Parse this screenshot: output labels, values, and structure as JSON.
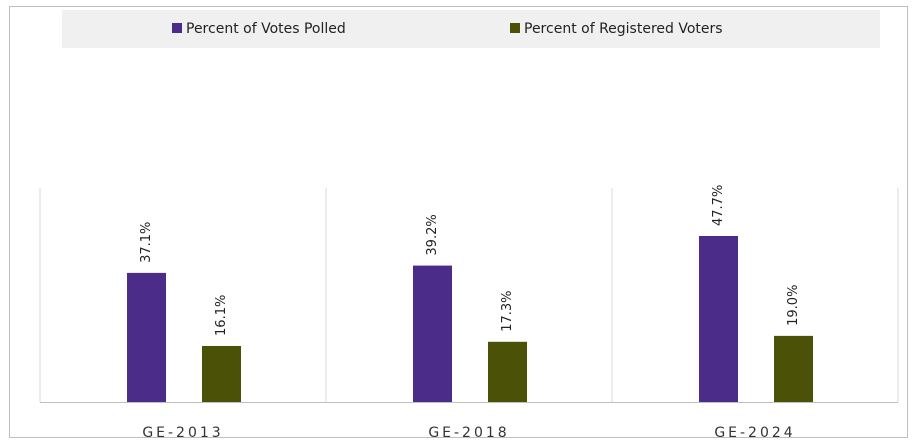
{
  "chart_data": {
    "type": "bar",
    "categories": [
      "GE-2013",
      "GE-2018",
      "GE-2024"
    ],
    "series": [
      {
        "name": "Percent of Votes Polled",
        "color": "#4b2c88",
        "values": [
          37.1,
          39.2,
          47.7
        ],
        "value_labels": [
          "37.1%",
          "39.2%",
          "47.7%"
        ]
      },
      {
        "name": "Percent of Registered Voters",
        "color": "#4b5207",
        "values": [
          16.1,
          17.3,
          19.0
        ],
        "value_labels": [
          "16.1%",
          "17.3%",
          "19.0%"
        ]
      }
    ],
    "legend": "top"
  }
}
